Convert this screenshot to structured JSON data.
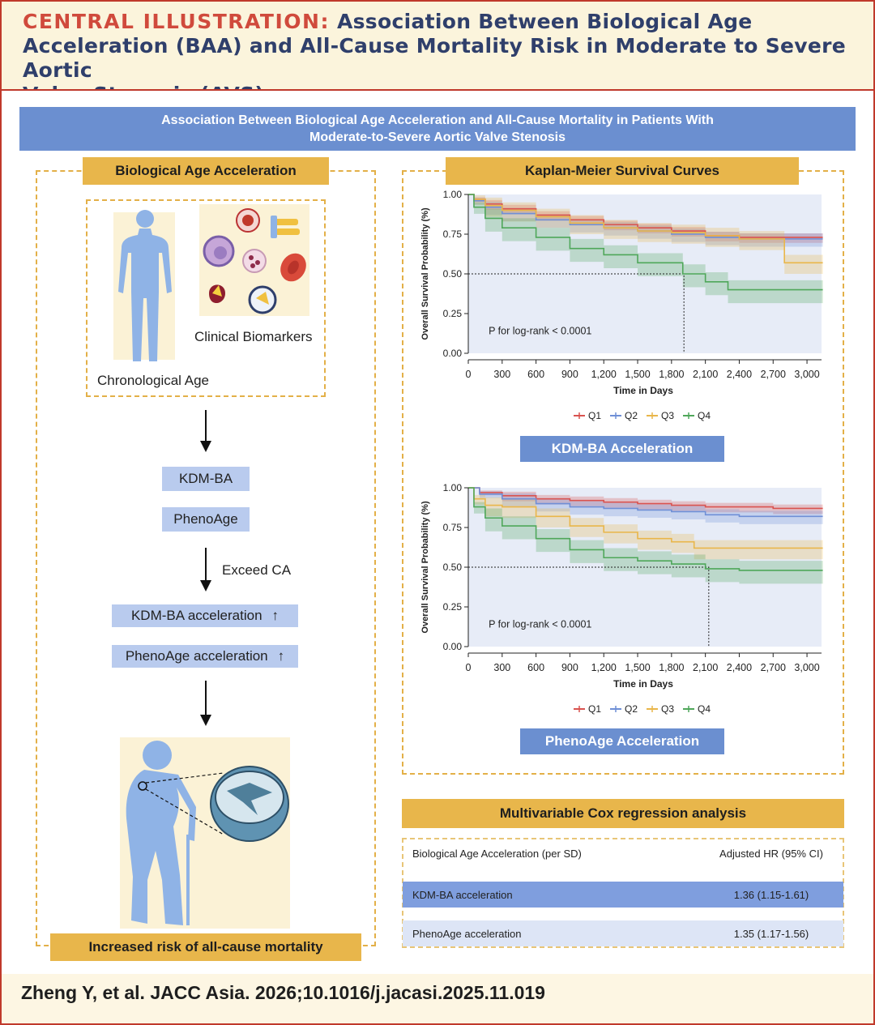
{
  "header": {
    "lead": "CENTRAL ILLUSTRATION:",
    "line1_rest": "Association Between Biological Age",
    "line2": "Acceleration (BAA) and All-Cause Mortality Risk in Moderate to Severe Aortic",
    "line3": "Valve Stenosis (AVS)"
  },
  "banner": {
    "line1": "Association Between Biological Age Acceleration and All-Cause Mortality in Patients With",
    "line2": "Moderate-to-Severe Aortic Valve Stenosis"
  },
  "left": {
    "title": "Biological Age Acceleration",
    "chronological_age": "Chronological Age",
    "clinical_biomarkers": "Clinical Biomarkers",
    "kdm_ba": "KDM-BA",
    "phenoage": "PhenoAge",
    "exceed_ca": "Exceed CA",
    "kdm_acc": "KDM-BA acceleration",
    "pheno_acc": "PhenoAge acceleration",
    "up_arrow": "↑",
    "outcome": "Increased risk of all-cause mortality"
  },
  "right": {
    "title": "Kaplan-Meier Survival Curves",
    "plot1_label": "KDM-BA Acceleration",
    "plot2_label": "PhenoAge Acceleration"
  },
  "cox": {
    "title": "Multivariable Cox regression analysis",
    "col1": "Biological Age Acceleration (per SD)",
    "col2": "Adjusted HR (95% CI)",
    "rows": [
      {
        "name": "KDM-BA acceleration",
        "hr": "1.36 (1.15-1.61)"
      },
      {
        "name": "PhenoAge acceleration",
        "hr": "1.35 (1.17-1.56)"
      }
    ]
  },
  "footer": "Zheng Y, et al. JACC Asia. 2026;10.1016/j.jacasi.2025.11.019",
  "colors": {
    "Q1": "#d9534f",
    "Q2": "#6f8fd6",
    "Q3": "#e9b64a",
    "Q4": "#4fa75a"
  },
  "chart_data": [
    {
      "type": "line",
      "title": "KDM-BA Acceleration",
      "xlabel": "Time in Days",
      "ylabel": "Overall Survival Probability (%)",
      "xlim": [
        0,
        3100
      ],
      "ylim": [
        0,
        1
      ],
      "xticks": [
        "0",
        "300",
        "600",
        "900",
        "1,200",
        "1,500",
        "1,800",
        "2,100",
        "2,400",
        "2,700",
        "3,000"
      ],
      "yticks": [
        "0.00",
        "0.25",
        "0.50",
        "0.75",
        "1.00"
      ],
      "annotation": "P for log-rank < 0.0001",
      "median_line": {
        "y": 0.5,
        "x": 1910
      },
      "legend": [
        "Q1",
        "Q2",
        "Q3",
        "Q4"
      ],
      "series": [
        {
          "name": "Q1",
          "x": [
            0,
            50,
            150,
            300,
            600,
            900,
            1200,
            1500,
            1800,
            2100,
            2400,
            2700,
            3000,
            3140
          ],
          "y": [
            1.0,
            0.97,
            0.94,
            0.91,
            0.87,
            0.84,
            0.81,
            0.79,
            0.77,
            0.74,
            0.73,
            0.73,
            0.73,
            0.73
          ]
        },
        {
          "name": "Q2",
          "x": [
            0,
            50,
            150,
            300,
            600,
            900,
            1200,
            1500,
            1800,
            2100,
            2400,
            2700,
            3000,
            3140
          ],
          "y": [
            1.0,
            0.96,
            0.92,
            0.88,
            0.84,
            0.81,
            0.79,
            0.77,
            0.75,
            0.73,
            0.72,
            0.72,
            0.72,
            0.72
          ]
        },
        {
          "name": "Q3",
          "x": [
            0,
            50,
            150,
            300,
            600,
            900,
            1200,
            1500,
            1800,
            2100,
            2400,
            2700,
            2800,
            3140
          ],
          "y": [
            1.0,
            0.97,
            0.93,
            0.9,
            0.86,
            0.82,
            0.79,
            0.77,
            0.76,
            0.74,
            0.72,
            0.72,
            0.57,
            0.57
          ]
        },
        {
          "name": "Q4",
          "x": [
            0,
            50,
            150,
            300,
            600,
            900,
            1200,
            1500,
            1700,
            1900,
            2100,
            2300,
            2600,
            3140
          ],
          "y": [
            1.0,
            0.92,
            0.85,
            0.79,
            0.73,
            0.66,
            0.62,
            0.57,
            0.57,
            0.5,
            0.45,
            0.4,
            0.4,
            0.4
          ]
        }
      ]
    },
    {
      "type": "line",
      "title": "PhenoAge Acceleration",
      "xlabel": "Time in Days",
      "ylabel": "Overall Survival Probability (%)",
      "xlim": [
        0,
        3100
      ],
      "ylim": [
        0,
        1
      ],
      "xticks": [
        "0",
        "300",
        "600",
        "900",
        "1,200",
        "1,500",
        "1,800",
        "2,100",
        "2,400",
        "2,700",
        "3,000"
      ],
      "yticks": [
        "0.00",
        "0.25",
        "0.50",
        "0.75",
        "1.00"
      ],
      "annotation": "P for log-rank < 0.0001",
      "median_line": {
        "y": 0.5,
        "x": 2130
      },
      "legend": [
        "Q1",
        "Q2",
        "Q3",
        "Q4"
      ],
      "series": [
        {
          "name": "Q1",
          "x": [
            0,
            100,
            300,
            600,
            900,
            1200,
            1500,
            1800,
            2100,
            2400,
            2700,
            3140
          ],
          "y": [
            1.0,
            0.97,
            0.95,
            0.93,
            0.92,
            0.91,
            0.9,
            0.89,
            0.88,
            0.88,
            0.87,
            0.87
          ]
        },
        {
          "name": "Q2",
          "x": [
            0,
            100,
            300,
            600,
            900,
            1200,
            1500,
            1800,
            2100,
            2400,
            2700,
            3140
          ],
          "y": [
            1.0,
            0.96,
            0.93,
            0.9,
            0.88,
            0.87,
            0.86,
            0.85,
            0.83,
            0.82,
            0.82,
            0.82
          ]
        },
        {
          "name": "Q3",
          "x": [
            0,
            50,
            150,
            300,
            600,
            900,
            1200,
            1500,
            1800,
            2000,
            2300,
            2700,
            3140
          ],
          "y": [
            1.0,
            0.93,
            0.89,
            0.88,
            0.82,
            0.76,
            0.72,
            0.68,
            0.66,
            0.62,
            0.62,
            0.62,
            0.62
          ]
        },
        {
          "name": "Q4",
          "x": [
            0,
            50,
            150,
            300,
            600,
            900,
            1200,
            1500,
            1800,
            2100,
            2400,
            2700,
            3140
          ],
          "y": [
            1.0,
            0.88,
            0.81,
            0.76,
            0.68,
            0.61,
            0.56,
            0.54,
            0.52,
            0.49,
            0.48,
            0.48,
            0.48
          ]
        }
      ]
    }
  ]
}
